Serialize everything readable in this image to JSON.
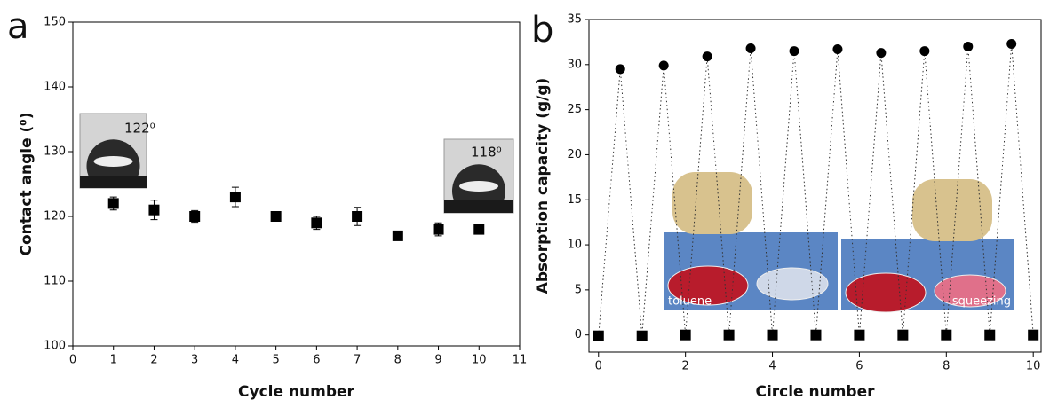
{
  "chart_data": [
    {
      "type": "scatter",
      "panel_label": "a",
      "x_label": "Cycle number",
      "y_label": "Contact angle (⁰)",
      "xlim": [
        0,
        11
      ],
      "ylim": [
        100,
        150
      ],
      "xticks": [
        0,
        1,
        2,
        3,
        4,
        5,
        6,
        7,
        8,
        9,
        10,
        11
      ],
      "yticks": [
        100,
        110,
        120,
        130,
        140,
        150
      ],
      "annotations": [
        "122⁰",
        "118⁰"
      ],
      "series": [
        {
          "marker": "square",
          "color": "#000000",
          "x": [
            1,
            2,
            3,
            4,
            5,
            6,
            7,
            8,
            9,
            10
          ],
          "values": [
            122,
            121,
            120,
            123,
            120,
            119,
            120,
            117,
            118,
            118
          ],
          "errors": [
            1,
            1.5,
            0.9,
            1.5,
            0.6,
            1,
            1.4,
            0.7,
            1,
            0.5
          ]
        }
      ]
    },
    {
      "type": "scatter",
      "panel_label": "b",
      "x_label": "Circle number",
      "y_label": "Absorption capacity (g/g)",
      "xlim": [
        -0.22,
        10.18
      ],
      "ylim": [
        -1.9,
        35
      ],
      "xticks": [
        0,
        2,
        4,
        6,
        8,
        10
      ],
      "yticks": [
        0,
        5,
        10,
        15,
        20,
        25,
        30,
        35
      ],
      "annotations": [
        "toluene",
        "squeezing"
      ],
      "line_style": "dotted",
      "series": [
        {
          "marker": "circle",
          "color": "#000000",
          "x": [
            0.5,
            1.5,
            2.5,
            3.5,
            4.5,
            5.5,
            6.5,
            7.5,
            8.5,
            9.5
          ],
          "values": [
            29.5,
            29.9,
            30.9,
            31.8,
            31.5,
            31.7,
            31.3,
            31.5,
            32,
            32.3
          ]
        },
        {
          "marker": "square",
          "color": "#000000",
          "x": [
            0,
            1,
            2,
            3,
            4,
            5,
            6,
            7,
            8,
            9,
            10
          ],
          "values": [
            -0.1,
            -0.1,
            0,
            0,
            0,
            0,
            0,
            0,
            0,
            0,
            0
          ]
        }
      ]
    }
  ]
}
